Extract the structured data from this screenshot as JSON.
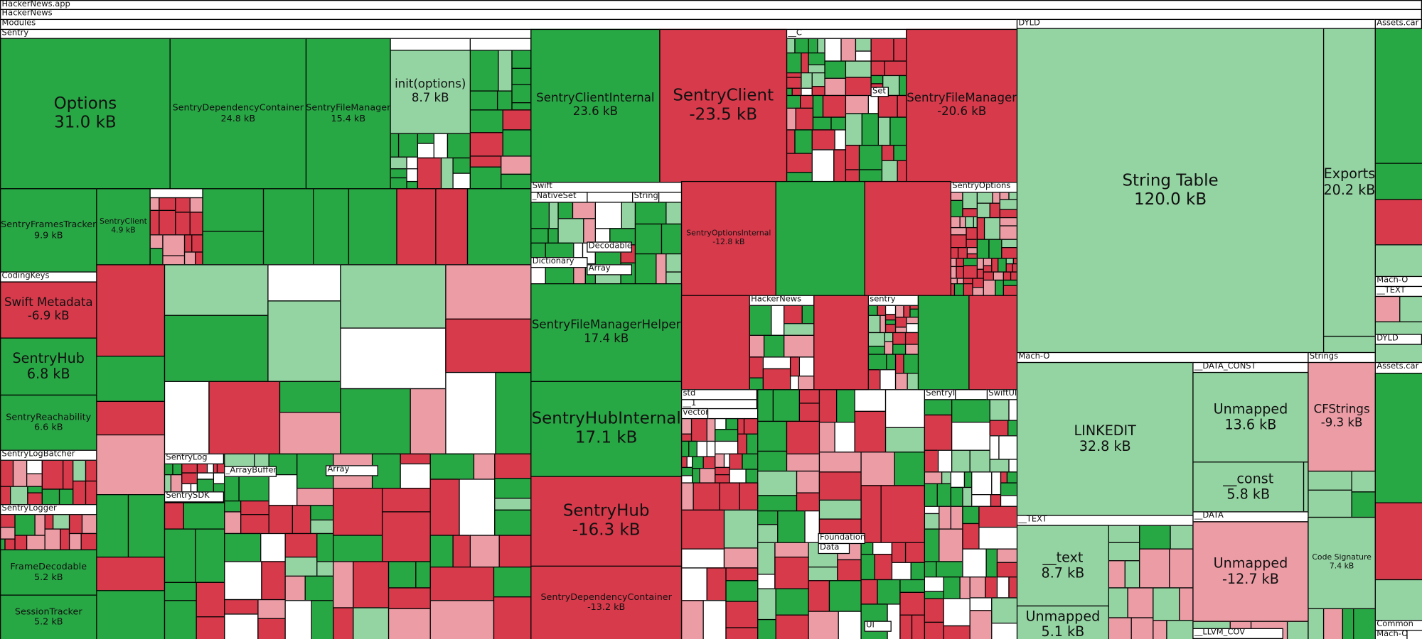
{
  "palette": {
    "increase": "#28a745",
    "decrease": "#d73a4b",
    "small_increase": "#94d3a2",
    "small_decrease": "#eb9ca5",
    "neutral": "#ffffff"
  },
  "headers": {
    "app": "HackerNews.app",
    "binary": "HackerNews",
    "modules": "Modules",
    "sentry": "Sentry",
    "dyld": "DYLD",
    "assets": "Assets.car",
    "c": "__C",
    "set": "Set",
    "swift": "Swift",
    "native_set": "_NativeSet",
    "string": "String",
    "decodable": "Decodable",
    "dictionary": "Dictionary",
    "array": "Array",
    "sentry_options": "SentryOptions",
    "hackernews": "HackerNews",
    "sentry_lower": "sentry",
    "std": "std",
    "ns1": "__1",
    "vector": "vector",
    "sentry_id": "SentryId",
    "swiftui": "SwiftUI",
    "foundation": "Foundation",
    "data": "Data",
    "ui": "UI",
    "coding_keys": "CodingKeys",
    "sentry_log_batcher": "SentryLogBatcher",
    "sentry_logger": "SentryLogger",
    "sentry_log": "SentryLog",
    "sentry_sdk": "SentrySDK",
    "array_buffer": "_ArrayBuffer",
    "array2": "Array",
    "macho": "Mach-O",
    "strings": "Strings",
    "data_const": "__DATA_CONST",
    "data_seg": "__DATA",
    "text_seg": "__TEXT",
    "llvm_cov": "__LLVM_COV",
    "assets_macho": "Mach-O",
    "assets_text": "__TEXT",
    "assets_dyld": "DYLD",
    "assets2": "Assets.car",
    "common": "Common",
    "common_macho": "Mach-O"
  },
  "tiles": {
    "options": {
      "name": "Options",
      "size": "31.0 kB"
    },
    "sdc": {
      "name": "SentryDependencyContainer",
      "size": "24.8 kB"
    },
    "sfm": {
      "name": "SentryFileManager",
      "size": "15.4 kB"
    },
    "init": {
      "name": "init(options)",
      "size": "8.7 kB"
    },
    "frames": {
      "name": "SentryFramesTracker",
      "size": "9.9 kB"
    },
    "client_small": {
      "name": "SentryClient",
      "size": "4.9 kB"
    },
    "metadata": {
      "name": "Swift Metadata",
      "size": "-6.9 kB"
    },
    "hub_small": {
      "name": "SentryHub",
      "size": "6.8 kB"
    },
    "reach": {
      "name": "SentryReachability",
      "size": "6.6 kB"
    },
    "framedec": {
      "name": "FrameDecodable",
      "size": "5.2 kB"
    },
    "session": {
      "name": "SessionTracker",
      "size": "5.2 kB"
    },
    "client_internal": {
      "name": "SentryClientInternal",
      "size": "23.6 kB"
    },
    "client": {
      "name": "SentryClient",
      "size": "-23.5 kB"
    },
    "sfm2": {
      "name": "SentryFileManager",
      "size": "-20.6 kB"
    },
    "options_internal": {
      "name": "SentryOptionsInternal",
      "size": "-12.8 kB"
    },
    "sfmh": {
      "name": "SentryFileManagerHelper",
      "size": "17.4 kB"
    },
    "hub_internal": {
      "name": "SentryHubInternal",
      "size": "17.1 kB"
    },
    "hub": {
      "name": "SentryHub",
      "size": "-16.3 kB"
    },
    "sdc2": {
      "name": "SentryDependencyContainer",
      "size": "-13.2 kB"
    },
    "string_table": {
      "name": "String Table",
      "size": "120.0 kB"
    },
    "exports": {
      "name": "Exports",
      "size": "20.2 kB"
    },
    "linkedit": {
      "name": "LINKEDIT",
      "size": "32.8 kB"
    },
    "unmapped1": {
      "name": "Unmapped",
      "size": "13.6 kB"
    },
    "const": {
      "name": "__const",
      "size": "5.8 kB"
    },
    "cfstrings": {
      "name": "CFStrings",
      "size": "-9.3 kB"
    },
    "text": {
      "name": "__text",
      "size": "8.7 kB"
    },
    "unmapped2": {
      "name": "Unmapped",
      "size": "-12.7 kB"
    },
    "codesig": {
      "name": "Code Signature",
      "size": "7.4 kB"
    },
    "unmapped3": {
      "name": "Unmapped",
      "size": "5.1 kB"
    }
  }
}
